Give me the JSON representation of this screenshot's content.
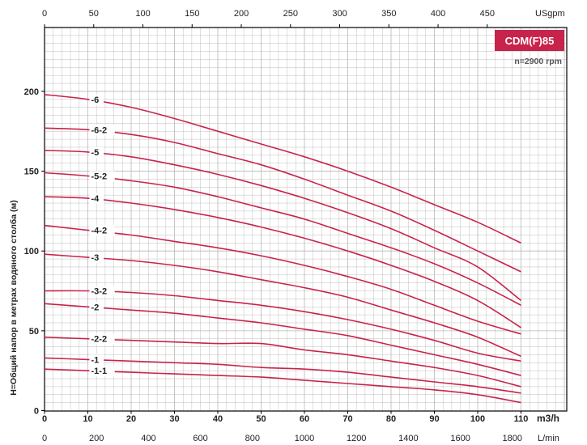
{
  "chart_data": {
    "type": "line",
    "title": "CDM(F)85",
    "subtitle": "n=2900 rpm",
    "ylabel": "H=Общий напор в метрах водяного столба (м)",
    "x_primary": {
      "unit": "m3/h",
      "lim": [
        0,
        110
      ],
      "ticks": [
        0,
        10,
        20,
        30,
        40,
        50,
        60,
        70,
        80,
        90,
        100,
        110
      ]
    },
    "x_lmin": {
      "unit": "L/min",
      "ticks": [
        0,
        200,
        400,
        600,
        800,
        1000,
        1200,
        1400,
        1600,
        1800
      ]
    },
    "x_usgpm": {
      "unit": "USgpm",
      "ticks": [
        0,
        50,
        100,
        150,
        200,
        250,
        300,
        350,
        400,
        450
      ]
    },
    "y": {
      "lim": [
        0,
        240
      ],
      "ticks": [
        0,
        50,
        100,
        150,
        200
      ]
    },
    "grid": true,
    "x": [
      0,
      10,
      20,
      30,
      40,
      50,
      60,
      70,
      80,
      90,
      100,
      110
    ],
    "series": [
      {
        "name": "-6",
        "x": [
          0,
          10,
          20,
          30,
          40,
          50,
          60,
          70,
          80,
          90,
          100,
          110
        ],
        "values": [
          198,
          195,
          190,
          183,
          175,
          167,
          159,
          150,
          140,
          129,
          118,
          105
        ]
      },
      {
        "name": "-6-2",
        "x": [
          0,
          10,
          20,
          30,
          40,
          50,
          60,
          70,
          80,
          90,
          100,
          110
        ],
        "values": [
          177,
          176,
          173,
          168,
          161,
          154,
          145,
          135,
          125,
          113,
          100,
          87
        ]
      },
      {
        "name": "-5",
        "x": [
          0,
          10,
          20,
          30,
          40,
          50,
          60,
          70,
          80,
          90,
          100,
          110
        ],
        "values": [
          163,
          162,
          159,
          154,
          148,
          141,
          133,
          124,
          114,
          102,
          90,
          69
        ]
      },
      {
        "name": "-5-2",
        "x": [
          0,
          10,
          20,
          30,
          40,
          50,
          60,
          70,
          80,
          90,
          100,
          110
        ],
        "values": [
          149,
          147,
          144,
          140,
          134,
          127,
          120,
          111,
          102,
          92,
          80,
          66
        ]
      },
      {
        "name": "-4",
        "x": [
          0,
          10,
          20,
          30,
          40,
          50,
          60,
          70,
          80,
          90,
          100,
          110
        ],
        "values": [
          134,
          133,
          130,
          126,
          121,
          115,
          108,
          100,
          91,
          81,
          69,
          52
        ]
      },
      {
        "name": "-4-2",
        "x": [
          0,
          10,
          20,
          30,
          40,
          50,
          60,
          70,
          80,
          90,
          100,
          110
        ],
        "values": [
          116,
          113,
          110,
          106,
          102,
          97,
          91,
          84,
          76,
          66,
          56,
          48
        ]
      },
      {
        "name": "-3",
        "x": [
          0,
          10,
          20,
          30,
          40,
          50,
          60,
          70,
          80,
          90,
          100,
          110
        ],
        "values": [
          98,
          96,
          94,
          91,
          87,
          82,
          77,
          71,
          63,
          55,
          46,
          34
        ]
      },
      {
        "name": "-3-2",
        "x": [
          0,
          10,
          20,
          30,
          40,
          50,
          60,
          70,
          80,
          90,
          100,
          110
        ],
        "values": [
          75,
          75,
          74,
          72,
          69,
          66,
          62,
          57,
          51,
          44,
          36,
          31
        ]
      },
      {
        "name": "-2",
        "x": [
          0,
          10,
          20,
          30,
          40,
          50,
          60,
          70,
          80,
          90,
          100,
          110
        ],
        "values": [
          67,
          65,
          63,
          61,
          58,
          55,
          51,
          47,
          41,
          35,
          29,
          22
        ]
      },
      {
        "name": "-2-2",
        "x": [
          0,
          10,
          20,
          30,
          40,
          50,
          60,
          70,
          80,
          90,
          100,
          110
        ],
        "values": [
          46,
          45,
          44,
          43,
          42,
          42,
          38,
          35,
          31,
          27,
          22,
          15
        ]
      },
      {
        "name": "-1",
        "x": [
          0,
          10,
          20,
          30,
          40,
          50,
          60,
          70,
          80,
          90,
          100,
          110
        ],
        "values": [
          33,
          32,
          31,
          30,
          29,
          27,
          26,
          24,
          21,
          18,
          15,
          11
        ]
      },
      {
        "name": "-1-1",
        "x": [
          0,
          10,
          20,
          30,
          40,
          50,
          60,
          70,
          80,
          90,
          100,
          110
        ],
        "values": [
          26,
          25,
          24,
          23,
          22,
          21,
          19,
          17,
          15,
          13,
          10,
          5
        ]
      }
    ],
    "colors": {
      "curve": "#c8234a",
      "badge": "#c8234a",
      "grid": "#b8b8b8",
      "axis": "#000000"
    }
  }
}
